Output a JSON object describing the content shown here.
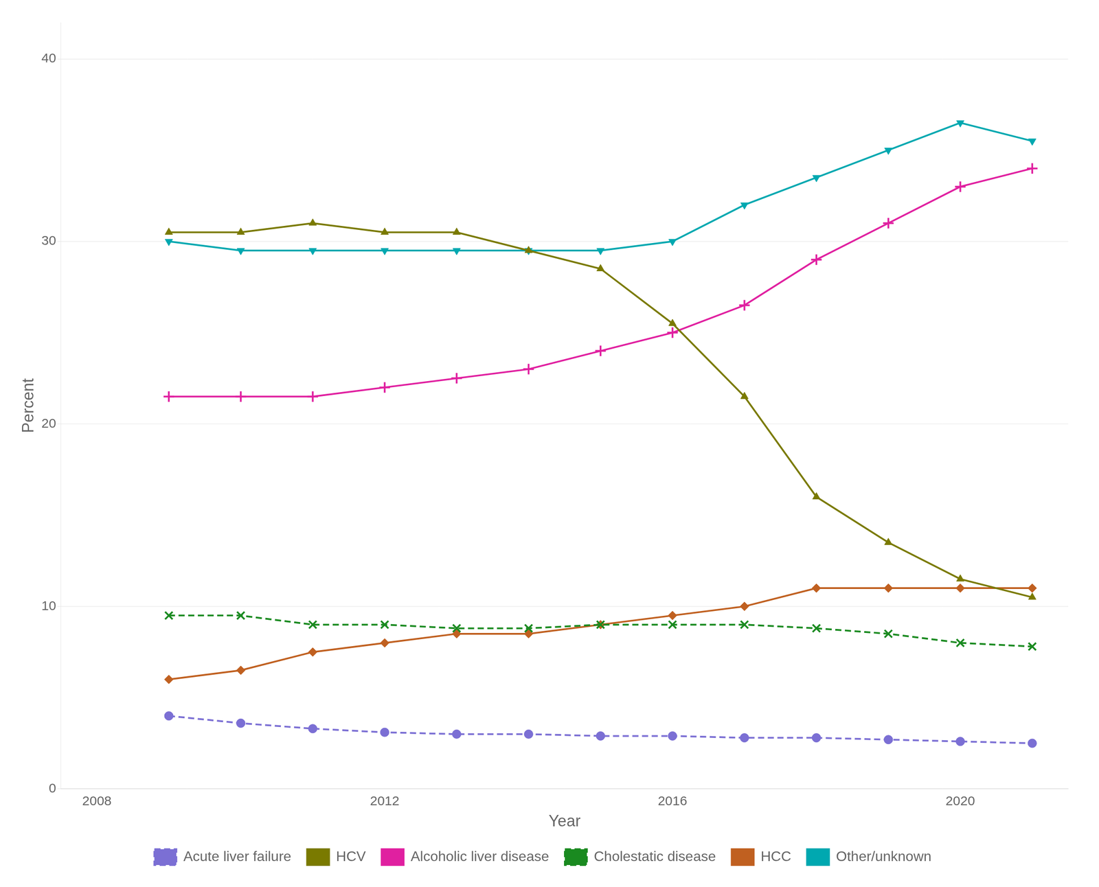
{
  "chart_data": {
    "type": "line",
    "x": [
      2009,
      2010,
      2011,
      2012,
      2013,
      2014,
      2015,
      2016,
      2017,
      2018,
      2019,
      2020,
      2021
    ],
    "series": [
      {
        "name": "Acute liver failure",
        "color": "#7B6FD4",
        "marker": "circle",
        "line_style": "dashed",
        "values": [
          4.0,
          3.6,
          3.3,
          3.1,
          3.0,
          3.0,
          2.9,
          2.9,
          2.8,
          2.8,
          2.7,
          2.6,
          2.5
        ]
      },
      {
        "name": "HCV",
        "color": "#7A7A00",
        "marker": "triangle-up",
        "line_style": "solid",
        "values": [
          30.5,
          30.5,
          31.0,
          30.5,
          30.5,
          29.5,
          28.5,
          25.5,
          21.5,
          16.0,
          13.5,
          11.5,
          10.5
        ]
      },
      {
        "name": "Alcoholic liver disease",
        "color": "#E020A0",
        "marker": "plus",
        "line_style": "solid",
        "values": [
          21.5,
          21.5,
          21.5,
          22.0,
          22.5,
          23.0,
          24.0,
          25.0,
          26.5,
          29.0,
          31.0,
          33.0,
          34.0
        ]
      },
      {
        "name": "Cholestatic disease",
        "color": "#1A8A20",
        "marker": "x",
        "line_style": "dashed",
        "values": [
          9.5,
          9.5,
          9.0,
          9.0,
          8.8,
          8.8,
          9.0,
          9.0,
          9.0,
          8.8,
          8.5,
          8.0,
          7.8
        ]
      },
      {
        "name": "HCC",
        "color": "#C06020",
        "marker": "diamond",
        "line_style": "solid",
        "values": [
          6.0,
          6.5,
          7.5,
          8.0,
          8.5,
          8.5,
          9.0,
          9.5,
          10.0,
          11.0,
          11.0,
          11.0,
          11.0
        ]
      },
      {
        "name": "Other/unknown",
        "color": "#00A8B0",
        "marker": "triangle-down",
        "line_style": "solid",
        "values": [
          30.0,
          29.5,
          29.5,
          29.5,
          29.5,
          29.5,
          29.5,
          30.0,
          32.0,
          33.5,
          35.0,
          36.5,
          35.5
        ]
      }
    ],
    "xlabel": "Year",
    "ylabel": "Percent",
    "xlim": [
      2007.5,
      2021.5
    ],
    "xticks": [
      2008,
      2012,
      2016,
      2020
    ],
    "ylim": [
      0,
      42
    ],
    "yticks": [
      0,
      10,
      20,
      30,
      40
    ],
    "grid": "y",
    "legend": "bottom"
  }
}
